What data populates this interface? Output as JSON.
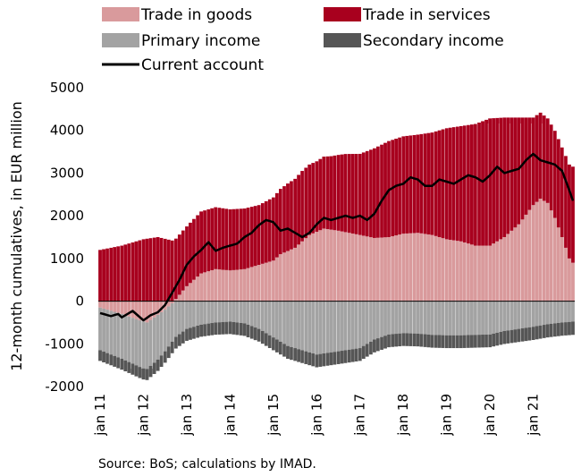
{
  "chart_data": {
    "type": "bar",
    "subtype": "stacked bar with line overlay",
    "ylabel": "12-month cumulatives, in EUR million",
    "ylim": [
      -2000,
      5000
    ],
    "yticks": [
      5000,
      4000,
      3000,
      2000,
      1000,
      0,
      -1000,
      -2000
    ],
    "x_tick_labels": [
      "jan 11",
      "jan 12",
      "jan 13",
      "jan 14",
      "jan 15",
      "jan 16",
      "jan 17",
      "jan 18",
      "jan 19",
      "jan 20",
      "jan 21"
    ],
    "x_tick_label_months": [
      0,
      12,
      24,
      36,
      48,
      60,
      72,
      84,
      96,
      108,
      120
    ],
    "period": {
      "start": "2011-01",
      "end": "2021-10",
      "frequency": "monthly"
    },
    "legend_position": "top",
    "grid": false,
    "colors": {
      "trade_goods": "#d99a9c",
      "trade_services": "#a8001e",
      "primary_income": "#a3a3a3",
      "secondary_income": "#565656",
      "current_account": "#000000"
    },
    "series_keyframes": {
      "trade_goods": [
        [
          0,
          -150
        ],
        [
          6,
          -300
        ],
        [
          11,
          -450
        ],
        [
          13,
          -500
        ],
        [
          15,
          -380
        ],
        [
          18,
          -200
        ],
        [
          20,
          -50
        ],
        [
          22,
          150
        ],
        [
          24,
          350
        ],
        [
          28,
          650
        ],
        [
          32,
          750
        ],
        [
          36,
          720
        ],
        [
          40,
          750
        ],
        [
          44,
          850
        ],
        [
          48,
          950
        ],
        [
          50,
          1100
        ],
        [
          54,
          1250
        ],
        [
          58,
          1550
        ],
        [
          62,
          1700
        ],
        [
          66,
          1650
        ],
        [
          72,
          1550
        ],
        [
          76,
          1480
        ],
        [
          80,
          1500
        ],
        [
          84,
          1580
        ],
        [
          88,
          1600
        ],
        [
          92,
          1550
        ],
        [
          96,
          1450
        ],
        [
          100,
          1400
        ],
        [
          104,
          1300
        ],
        [
          108,
          1300
        ],
        [
          112,
          1500
        ],
        [
          116,
          1800
        ],
        [
          120,
          2250
        ],
        [
          122,
          2400
        ],
        [
          124,
          2300
        ],
        [
          126,
          1950
        ],
        [
          128,
          1500
        ],
        [
          130,
          1000
        ],
        [
          131,
          900
        ]
      ],
      "trade_services": [
        [
          0,
          1200
        ],
        [
          6,
          1300
        ],
        [
          12,
          1450
        ],
        [
          16,
          1500
        ],
        [
          20,
          1420
        ],
        [
          24,
          1400
        ],
        [
          28,
          1450
        ],
        [
          32,
          1450
        ],
        [
          36,
          1430
        ],
        [
          40,
          1420
        ],
        [
          44,
          1400
        ],
        [
          48,
          1480
        ],
        [
          52,
          1580
        ],
        [
          56,
          1650
        ],
        [
          60,
          1650
        ],
        [
          64,
          1720
        ],
        [
          68,
          1830
        ],
        [
          72,
          1900
        ],
        [
          76,
          2100
        ],
        [
          80,
          2250
        ],
        [
          84,
          2280
        ],
        [
          88,
          2300
        ],
        [
          92,
          2400
        ],
        [
          96,
          2600
        ],
        [
          100,
          2700
        ],
        [
          104,
          2850
        ],
        [
          108,
          2980
        ],
        [
          112,
          2800
        ],
        [
          116,
          2500
        ],
        [
          120,
          2050
        ],
        [
          124,
          1980
        ],
        [
          128,
          2100
        ],
        [
          131,
          2250
        ]
      ],
      "primary_income": [
        [
          0,
          -1000
        ],
        [
          6,
          -1050
        ],
        [
          12,
          -1100
        ],
        [
          16,
          -1050
        ],
        [
          20,
          -900
        ],
        [
          24,
          -650
        ],
        [
          28,
          -550
        ],
        [
          32,
          -500
        ],
        [
          36,
          -480
        ],
        [
          40,
          -520
        ],
        [
          44,
          -650
        ],
        [
          48,
          -850
        ],
        [
          52,
          -1050
        ],
        [
          56,
          -1150
        ],
        [
          60,
          -1250
        ],
        [
          64,
          -1200
        ],
        [
          68,
          -1150
        ],
        [
          72,
          -1100
        ],
        [
          76,
          -900
        ],
        [
          80,
          -780
        ],
        [
          84,
          -750
        ],
        [
          88,
          -760
        ],
        [
          92,
          -790
        ],
        [
          96,
          -800
        ],
        [
          100,
          -800
        ],
        [
          104,
          -790
        ],
        [
          108,
          -780
        ],
        [
          112,
          -700
        ],
        [
          116,
          -650
        ],
        [
          120,
          -600
        ],
        [
          124,
          -540
        ],
        [
          128,
          -500
        ],
        [
          131,
          -480
        ]
      ],
      "secondary_income": [
        [
          0,
          -250
        ],
        [
          12,
          -260
        ],
        [
          20,
          -270
        ],
        [
          24,
          -280
        ],
        [
          36,
          -290
        ],
        [
          48,
          -300
        ],
        [
          60,
          -300
        ],
        [
          72,
          -300
        ],
        [
          84,
          -300
        ],
        [
          96,
          -300
        ],
        [
          108,
          -300
        ],
        [
          120,
          -310
        ],
        [
          131,
          -310
        ]
      ],
      "current_account": [
        [
          0,
          -280
        ],
        [
          3,
          -350
        ],
        [
          5,
          -300
        ],
        [
          6,
          -380
        ],
        [
          9,
          -230
        ],
        [
          12,
          -450
        ],
        [
          14,
          -330
        ],
        [
          16,
          -260
        ],
        [
          18,
          -90
        ],
        [
          20,
          200
        ],
        [
          22,
          500
        ],
        [
          24,
          850
        ],
        [
          26,
          1050
        ],
        [
          28,
          1200
        ],
        [
          30,
          1380
        ],
        [
          32,
          1180
        ],
        [
          34,
          1250
        ],
        [
          36,
          1300
        ],
        [
          38,
          1350
        ],
        [
          40,
          1500
        ],
        [
          42,
          1600
        ],
        [
          44,
          1780
        ],
        [
          46,
          1900
        ],
        [
          48,
          1850
        ],
        [
          50,
          1650
        ],
        [
          52,
          1700
        ],
        [
          54,
          1600
        ],
        [
          56,
          1500
        ],
        [
          58,
          1600
        ],
        [
          60,
          1800
        ],
        [
          62,
          1950
        ],
        [
          64,
          1900
        ],
        [
          66,
          1950
        ],
        [
          68,
          2000
        ],
        [
          70,
          1950
        ],
        [
          72,
          2000
        ],
        [
          74,
          1900
        ],
        [
          76,
          2050
        ],
        [
          78,
          2350
        ],
        [
          80,
          2600
        ],
        [
          82,
          2700
        ],
        [
          84,
          2750
        ],
        [
          86,
          2900
        ],
        [
          88,
          2850
        ],
        [
          90,
          2700
        ],
        [
          92,
          2700
        ],
        [
          94,
          2850
        ],
        [
          96,
          2800
        ],
        [
          98,
          2750
        ],
        [
          100,
          2850
        ],
        [
          102,
          2950
        ],
        [
          104,
          2900
        ],
        [
          106,
          2800
        ],
        [
          108,
          2950
        ],
        [
          110,
          3150
        ],
        [
          112,
          3000
        ],
        [
          114,
          3050
        ],
        [
          116,
          3100
        ],
        [
          118,
          3300
        ],
        [
          120,
          3450
        ],
        [
          122,
          3300
        ],
        [
          124,
          3250
        ],
        [
          126,
          3200
        ],
        [
          128,
          3050
        ],
        [
          130,
          2600
        ],
        [
          131,
          2350
        ]
      ]
    }
  },
  "legend": [
    {
      "key": "trade_goods",
      "label": "Trade in goods",
      "kind": "box"
    },
    {
      "key": "trade_services",
      "label": "Trade in services",
      "kind": "box"
    },
    {
      "key": "primary_income",
      "label": "Primary income",
      "kind": "box"
    },
    {
      "key": "secondary_income",
      "label": "Secondary income",
      "kind": "box"
    },
    {
      "key": "current_account",
      "label": "Current account",
      "kind": "line"
    }
  ],
  "footer": {
    "source": "Source: BoS; calculations by IMAD."
  }
}
